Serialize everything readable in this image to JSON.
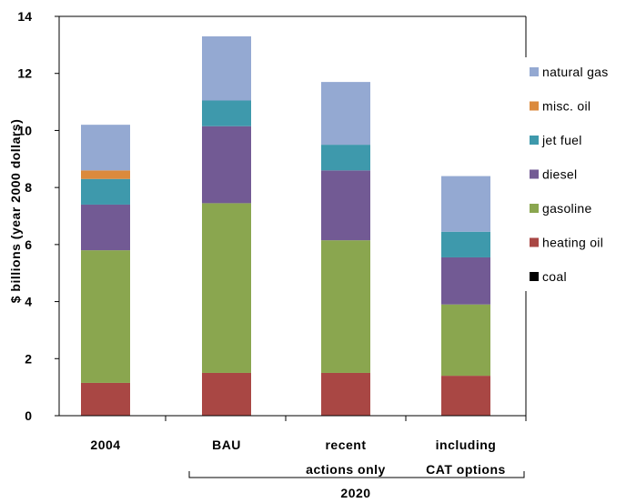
{
  "chart_data": {
    "type": "bar",
    "stacked": true,
    "categories": [
      "2004",
      "BAU",
      "recent actions only",
      "including CAT options"
    ],
    "category_lines": [
      [
        "2004"
      ],
      [
        "BAU"
      ],
      [
        "recent",
        "actions only"
      ],
      [
        "including",
        "CAT options"
      ]
    ],
    "group_label": "2020",
    "ylabel": "$ billions (year 2000 dollars)",
    "ylim": [
      0,
      14
    ],
    "yticks": [
      0,
      2,
      4,
      6,
      8,
      10,
      12,
      14
    ],
    "legend_position": "right",
    "series": [
      {
        "name": "coal",
        "color": "#000000",
        "values": [
          0,
          0,
          0,
          0
        ]
      },
      {
        "name": "heating oil",
        "color": "#a94744",
        "values": [
          1.15,
          1.5,
          1.5,
          1.4
        ]
      },
      {
        "name": "gasoline",
        "color": "#8aa64f",
        "values": [
          4.65,
          5.95,
          4.65,
          2.5
        ]
      },
      {
        "name": "diesel",
        "color": "#725a94",
        "values": [
          1.6,
          2.7,
          2.45,
          1.65
        ]
      },
      {
        "name": "jet fuel",
        "color": "#3e99ac",
        "values": [
          0.9,
          0.9,
          0.9,
          0.9
        ]
      },
      {
        "name": "misc. oil",
        "color": "#db8a3d",
        "values": [
          0.3,
          0,
          0,
          0
        ]
      },
      {
        "name": "natural gas",
        "color": "#94a9d2",
        "values": [
          1.6,
          2.25,
          2.2,
          1.95
        ]
      }
    ]
  }
}
